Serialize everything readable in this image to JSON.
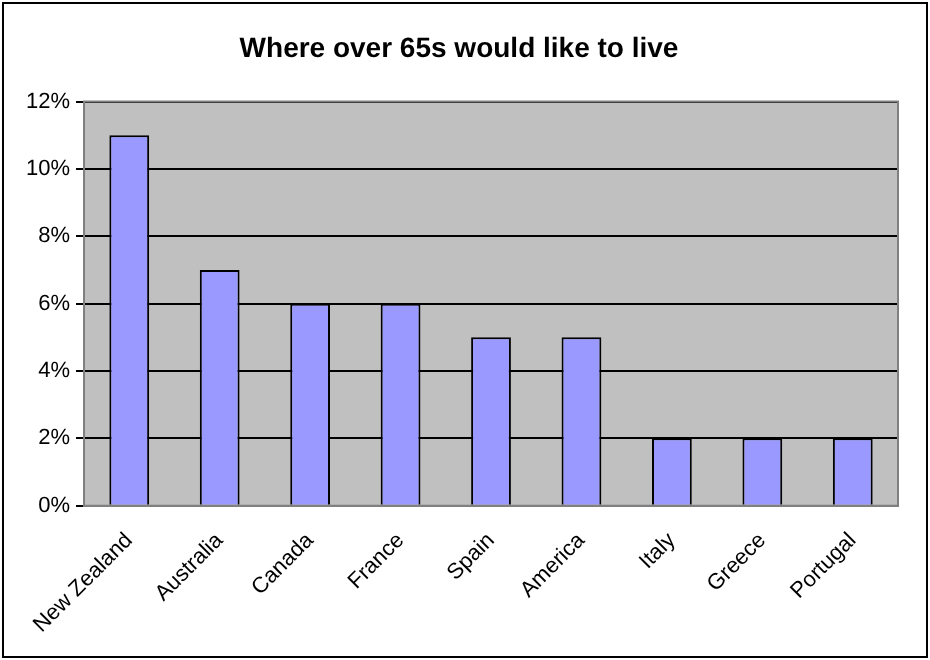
{
  "chart_data": {
    "type": "bar",
    "title": "Where over 65s would like to live",
    "categories": [
      "New Zealand",
      "Australia",
      "Canada",
      "France",
      "Spain",
      "America",
      "Italy",
      "Greece",
      "Portugal"
    ],
    "values": [
      11,
      7,
      6,
      6,
      5,
      5,
      2,
      2,
      2
    ],
    "color": "#9999ff",
    "ylim": [
      0,
      12
    ],
    "yticks": [
      {
        "value": 0,
        "label": "0%"
      },
      {
        "value": 2,
        "label": "2%"
      },
      {
        "value": 4,
        "label": "4%"
      },
      {
        "value": 6,
        "label": "6%"
      },
      {
        "value": 8,
        "label": "8%"
      },
      {
        "value": 10,
        "label": "10%"
      },
      {
        "value": 12,
        "label": "12%"
      }
    ],
    "grid": "y",
    "legend": false
  }
}
